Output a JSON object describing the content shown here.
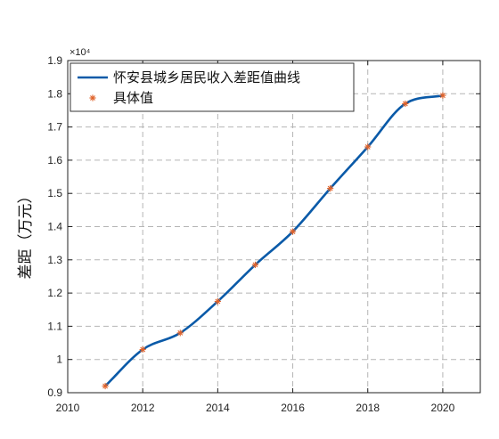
{
  "chart_data": {
    "type": "line",
    "ylabel": "差距（万元）",
    "y_exponent_label": "×10⁴",
    "xlim": [
      2010,
      2021
    ],
    "ylim": [
      0.9,
      1.9
    ],
    "xticks": [
      2010,
      2012,
      2014,
      2016,
      2018,
      2020
    ],
    "yticks": [
      0.9,
      1,
      1.1,
      1.2,
      1.3,
      1.4,
      1.5,
      1.6,
      1.7,
      1.8,
      1.9
    ],
    "grid": true,
    "legend_position": "top-left",
    "series": [
      {
        "name": "怀安县城乡居民收入差距值曲线",
        "kind": "line",
        "color": "#0a5aa8",
        "x": [
          2011,
          2012,
          2013,
          2014,
          2015,
          2016,
          2017,
          2018,
          2019,
          2020
        ],
        "y": [
          0.92,
          1.03,
          1.08,
          1.175,
          1.285,
          1.385,
          1.515,
          1.64,
          1.77,
          1.795
        ]
      },
      {
        "name": "具体值",
        "kind": "marker",
        "marker": "asterisk",
        "color": "#e0632b",
        "x": [
          2011,
          2012,
          2013,
          2014,
          2015,
          2016,
          2017,
          2018,
          2019,
          2020
        ],
        "y": [
          0.92,
          1.03,
          1.08,
          1.175,
          1.285,
          1.385,
          1.515,
          1.64,
          1.77,
          1.795
        ]
      }
    ]
  }
}
